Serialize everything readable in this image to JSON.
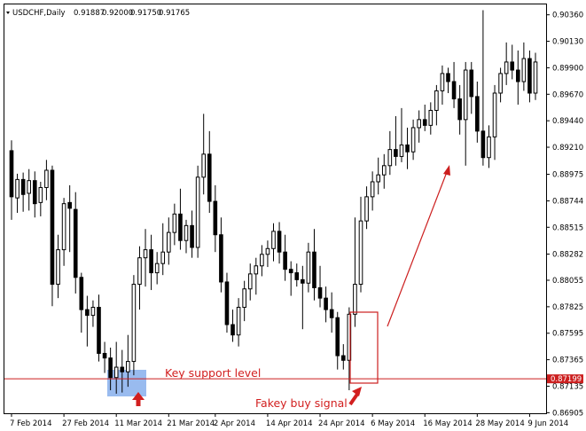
{
  "header": {
    "symbol": "USDCHF,Daily",
    "open": "0.91887",
    "high": "0.92000",
    "low": "0.91750",
    "close": "0.91765"
  },
  "chart_data": {
    "type": "candlestick",
    "x_axis_labels": [
      "7 Feb 2014",
      "27 Feb 2014",
      "11 Mar 2014",
      "21 Mar 2014",
      "2 Apr 2014",
      "14 Apr 2014",
      "24 Apr 2014",
      "6 May 2014",
      "16 May 2014",
      "28 May 2014",
      "9 Jun 2014"
    ],
    "y_axis_labels": [
      "0.90360",
      "0.90130",
      "0.89900",
      "0.89670",
      "0.89440",
      "0.89210",
      "0.88975",
      "0.88744",
      "0.88515",
      "0.88282",
      "0.88055",
      "0.87825",
      "0.87595",
      "0.87365",
      "0.87135",
      "0.86905"
    ],
    "ylim": [
      0.869,
      0.9045
    ],
    "current_price": "0.87199",
    "support_level": 0.87199,
    "candles": [
      {
        "o": 0.8918,
        "h": 0.8927,
        "l": 0.8858,
        "c": 0.8878
      },
      {
        "o": 0.8877,
        "h": 0.8898,
        "l": 0.8864,
        "c": 0.8893
      },
      {
        "o": 0.8893,
        "h": 0.8899,
        "l": 0.8865,
        "c": 0.888
      },
      {
        "o": 0.8881,
        "h": 0.8902,
        "l": 0.8866,
        "c": 0.8892
      },
      {
        "o": 0.8892,
        "h": 0.89,
        "l": 0.886,
        "c": 0.8872
      },
      {
        "o": 0.8873,
        "h": 0.8891,
        "l": 0.8861,
        "c": 0.8886
      },
      {
        "o": 0.8886,
        "h": 0.891,
        "l": 0.8875,
        "c": 0.8901
      },
      {
        "o": 0.8901,
        "h": 0.8905,
        "l": 0.8783,
        "c": 0.8802
      },
      {
        "o": 0.8802,
        "h": 0.8845,
        "l": 0.879,
        "c": 0.8832
      },
      {
        "o": 0.8832,
        "h": 0.8877,
        "l": 0.8818,
        "c": 0.8872
      },
      {
        "o": 0.8873,
        "h": 0.8888,
        "l": 0.883,
        "c": 0.8868
      },
      {
        "o": 0.8867,
        "h": 0.8882,
        "l": 0.8794,
        "c": 0.8808
      },
      {
        "o": 0.8808,
        "h": 0.8812,
        "l": 0.876,
        "c": 0.878
      },
      {
        "o": 0.878,
        "h": 0.8792,
        "l": 0.8748,
        "c": 0.8775
      },
      {
        "o": 0.8775,
        "h": 0.8788,
        "l": 0.8765,
        "c": 0.8782
      },
      {
        "o": 0.8782,
        "h": 0.8793,
        "l": 0.8735,
        "c": 0.8742
      },
      {
        "o": 0.8742,
        "h": 0.8752,
        "l": 0.8725,
        "c": 0.8738
      },
      {
        "o": 0.8738,
        "h": 0.8747,
        "l": 0.871,
        "c": 0.8721
      },
      {
        "o": 0.8721,
        "h": 0.8752,
        "l": 0.8707,
        "c": 0.873
      },
      {
        "o": 0.873,
        "h": 0.8745,
        "l": 0.8708,
        "c": 0.8726
      },
      {
        "o": 0.8726,
        "h": 0.8758,
        "l": 0.8713,
        "c": 0.8735
      },
      {
        "o": 0.8735,
        "h": 0.881,
        "l": 0.8723,
        "c": 0.8802
      },
      {
        "o": 0.8802,
        "h": 0.8835,
        "l": 0.878,
        "c": 0.8825
      },
      {
        "o": 0.8825,
        "h": 0.885,
        "l": 0.88,
        "c": 0.8832
      },
      {
        "o": 0.8832,
        "h": 0.8845,
        "l": 0.8797,
        "c": 0.8812
      },
      {
        "o": 0.8812,
        "h": 0.883,
        "l": 0.8802,
        "c": 0.882
      },
      {
        "o": 0.882,
        "h": 0.8855,
        "l": 0.881,
        "c": 0.883
      },
      {
        "o": 0.883,
        "h": 0.886,
        "l": 0.8819,
        "c": 0.8847
      },
      {
        "o": 0.8847,
        "h": 0.8872,
        "l": 0.8836,
        "c": 0.8863
      },
      {
        "o": 0.8863,
        "h": 0.8885,
        "l": 0.8832,
        "c": 0.884
      },
      {
        "o": 0.884,
        "h": 0.8858,
        "l": 0.8829,
        "c": 0.8853
      },
      {
        "o": 0.8853,
        "h": 0.8866,
        "l": 0.8825,
        "c": 0.8834
      },
      {
        "o": 0.8834,
        "h": 0.8905,
        "l": 0.8825,
        "c": 0.8895
      },
      {
        "o": 0.8895,
        "h": 0.895,
        "l": 0.888,
        "c": 0.8915
      },
      {
        "o": 0.8915,
        "h": 0.8935,
        "l": 0.8864,
        "c": 0.8874
      },
      {
        "o": 0.8874,
        "h": 0.8888,
        "l": 0.883,
        "c": 0.8845
      },
      {
        "o": 0.8845,
        "h": 0.886,
        "l": 0.8795,
        "c": 0.8804
      },
      {
        "o": 0.8804,
        "h": 0.8812,
        "l": 0.876,
        "c": 0.8767
      },
      {
        "o": 0.8767,
        "h": 0.878,
        "l": 0.8752,
        "c": 0.8758
      },
      {
        "o": 0.8758,
        "h": 0.879,
        "l": 0.8748,
        "c": 0.8782
      },
      {
        "o": 0.8782,
        "h": 0.8805,
        "l": 0.877,
        "c": 0.8798
      },
      {
        "o": 0.8798,
        "h": 0.882,
        "l": 0.8788,
        "c": 0.8811
      },
      {
        "o": 0.8811,
        "h": 0.8825,
        "l": 0.8793,
        "c": 0.8818
      },
      {
        "o": 0.8818,
        "h": 0.8836,
        "l": 0.8809,
        "c": 0.8828
      },
      {
        "o": 0.8828,
        "h": 0.884,
        "l": 0.8817,
        "c": 0.8833
      },
      {
        "o": 0.8833,
        "h": 0.8855,
        "l": 0.8822,
        "c": 0.8848
      },
      {
        "o": 0.8848,
        "h": 0.8856,
        "l": 0.882,
        "c": 0.883
      },
      {
        "o": 0.883,
        "h": 0.8845,
        "l": 0.8805,
        "c": 0.8815
      },
      {
        "o": 0.8815,
        "h": 0.8822,
        "l": 0.8792,
        "c": 0.8812
      },
      {
        "o": 0.8812,
        "h": 0.882,
        "l": 0.88,
        "c": 0.8806
      },
      {
        "o": 0.8806,
        "h": 0.8818,
        "l": 0.8763,
        "c": 0.8803
      },
      {
        "o": 0.8803,
        "h": 0.8838,
        "l": 0.8795,
        "c": 0.883
      },
      {
        "o": 0.883,
        "h": 0.885,
        "l": 0.8788,
        "c": 0.8799
      },
      {
        "o": 0.8799,
        "h": 0.8818,
        "l": 0.8782,
        "c": 0.879
      },
      {
        "o": 0.879,
        "h": 0.88,
        "l": 0.8769,
        "c": 0.878
      },
      {
        "o": 0.878,
        "h": 0.8795,
        "l": 0.876,
        "c": 0.8773
      },
      {
        "o": 0.8773,
        "h": 0.8778,
        "l": 0.8728,
        "c": 0.874
      },
      {
        "o": 0.874,
        "h": 0.875,
        "l": 0.8728,
        "c": 0.8736
      },
      {
        "o": 0.8736,
        "h": 0.8782,
        "l": 0.871,
        "c": 0.8776
      },
      {
        "o": 0.8776,
        "h": 0.886,
        "l": 0.8765,
        "c": 0.8802
      },
      {
        "o": 0.8802,
        "h": 0.8878,
        "l": 0.8795,
        "c": 0.8857
      },
      {
        "o": 0.8857,
        "h": 0.8887,
        "l": 0.885,
        "c": 0.8878
      },
      {
        "o": 0.8878,
        "h": 0.89,
        "l": 0.8866,
        "c": 0.8891
      },
      {
        "o": 0.8891,
        "h": 0.8912,
        "l": 0.888,
        "c": 0.8897
      },
      {
        "o": 0.8897,
        "h": 0.8915,
        "l": 0.8885,
        "c": 0.8905
      },
      {
        "o": 0.8905,
        "h": 0.8935,
        "l": 0.8897,
        "c": 0.8919
      },
      {
        "o": 0.8919,
        "h": 0.8948,
        "l": 0.8905,
        "c": 0.8913
      },
      {
        "o": 0.8913,
        "h": 0.8955,
        "l": 0.8908,
        "c": 0.8923
      },
      {
        "o": 0.8923,
        "h": 0.8938,
        "l": 0.8902,
        "c": 0.8917
      },
      {
        "o": 0.8917,
        "h": 0.8945,
        "l": 0.891,
        "c": 0.8938
      },
      {
        "o": 0.8938,
        "h": 0.8953,
        "l": 0.8925,
        "c": 0.8945
      },
      {
        "o": 0.8945,
        "h": 0.8958,
        "l": 0.8935,
        "c": 0.894
      },
      {
        "o": 0.894,
        "h": 0.896,
        "l": 0.8932,
        "c": 0.8953
      },
      {
        "o": 0.8953,
        "h": 0.8975,
        "l": 0.894,
        "c": 0.897
      },
      {
        "o": 0.897,
        "h": 0.8992,
        "l": 0.8958,
        "c": 0.8985
      },
      {
        "o": 0.8985,
        "h": 0.899,
        "l": 0.8968,
        "c": 0.8978
      },
      {
        "o": 0.8978,
        "h": 0.8995,
        "l": 0.8955,
        "c": 0.8963
      },
      {
        "o": 0.8963,
        "h": 0.8975,
        "l": 0.8932,
        "c": 0.8945
      },
      {
        "o": 0.8945,
        "h": 0.8995,
        "l": 0.8905,
        "c": 0.8988
      },
      {
        "o": 0.8988,
        "h": 0.8995,
        "l": 0.895,
        "c": 0.8965
      },
      {
        "o": 0.8965,
        "h": 0.8978,
        "l": 0.8925,
        "c": 0.8935
      },
      {
        "o": 0.8935,
        "h": 0.904,
        "l": 0.8905,
        "c": 0.8912
      },
      {
        "o": 0.8912,
        "h": 0.894,
        "l": 0.8903,
        "c": 0.893
      },
      {
        "o": 0.893,
        "h": 0.8975,
        "l": 0.891,
        "c": 0.8968
      },
      {
        "o": 0.8968,
        "h": 0.899,
        "l": 0.896,
        "c": 0.8985
      },
      {
        "o": 0.8985,
        "h": 0.9012,
        "l": 0.8975,
        "c": 0.8995
      },
      {
        "o": 0.8995,
        "h": 0.901,
        "l": 0.898,
        "c": 0.8988
      },
      {
        "o": 0.8988,
        "h": 0.9005,
        "l": 0.8958,
        "c": 0.8978
      },
      {
        "o": 0.8978,
        "h": 0.9012,
        "l": 0.897,
        "c": 0.8998
      },
      {
        "o": 0.8998,
        "h": 0.9005,
        "l": 0.896,
        "c": 0.8968
      },
      {
        "o": 0.8968,
        "h": 0.9003,
        "l": 0.8962,
        "c": 0.8995
      }
    ]
  },
  "annotations": {
    "support_label": "Key support level",
    "fakey_label": "Fakey buy signal"
  },
  "colors": {
    "line_red": "#cc1f1f",
    "highlight_blue": "#6e9ee8",
    "candle": "#000000"
  }
}
